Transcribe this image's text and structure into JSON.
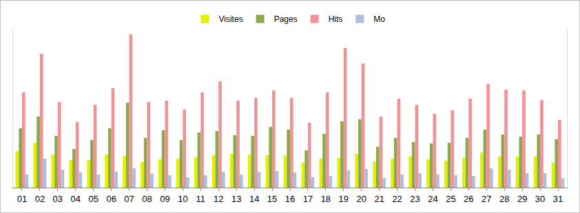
{
  "chart_data": {
    "type": "bar",
    "categories": [
      "01",
      "02",
      "03",
      "04",
      "05",
      "06",
      "07",
      "08",
      "09",
      "10",
      "11",
      "12",
      "13",
      "14",
      "15",
      "16",
      "17",
      "18",
      "19",
      "20",
      "21",
      "22",
      "23",
      "24",
      "25",
      "26",
      "27",
      "28",
      "29",
      "30",
      "31"
    ],
    "series": [
      {
        "name": "Visites",
        "color": "#e3ef00",
        "values": [
          53,
          65,
          48,
          40,
          40,
          48,
          46,
          37,
          41,
          42,
          44,
          47,
          49,
          48,
          47,
          47,
          36,
          42,
          43,
          49,
          38,
          42,
          45,
          41,
          39,
          43,
          51,
          45,
          45,
          45,
          36
        ]
      },
      {
        "name": "Pages",
        "color": "#8ba84c",
        "values": [
          86,
          103,
          75,
          56,
          69,
          86,
          123,
          72,
          83,
          69,
          80,
          82,
          76,
          75,
          88,
          84,
          54,
          78,
          96,
          99,
          59,
          72,
          66,
          64,
          65,
          72,
          84,
          77,
          74,
          77,
          70
        ]
      },
      {
        "name": "Hits",
        "color": "#f19296",
        "values": [
          138,
          194,
          124,
          95,
          120,
          144,
          222,
          124,
          126,
          113,
          138,
          154,
          126,
          130,
          141,
          130,
          94,
          138,
          202,
          180,
          103,
          129,
          120,
          107,
          112,
          129,
          150,
          142,
          141,
          127,
          98
        ]
      },
      {
        "name": "Mo",
        "color": "#aac0dd",
        "values": [
          19,
          42,
          26,
          22,
          19,
          23,
          28,
          20,
          18,
          15,
          18,
          23,
          19,
          23,
          24,
          22,
          15,
          17,
          25,
          27,
          14,
          19,
          21,
          19,
          18,
          17,
          28,
          26,
          21,
          21,
          14
        ]
      }
    ],
    "ylim": [
      0,
      230
    ],
    "grid": false,
    "legend": "top",
    "tick_labels": "x"
  }
}
